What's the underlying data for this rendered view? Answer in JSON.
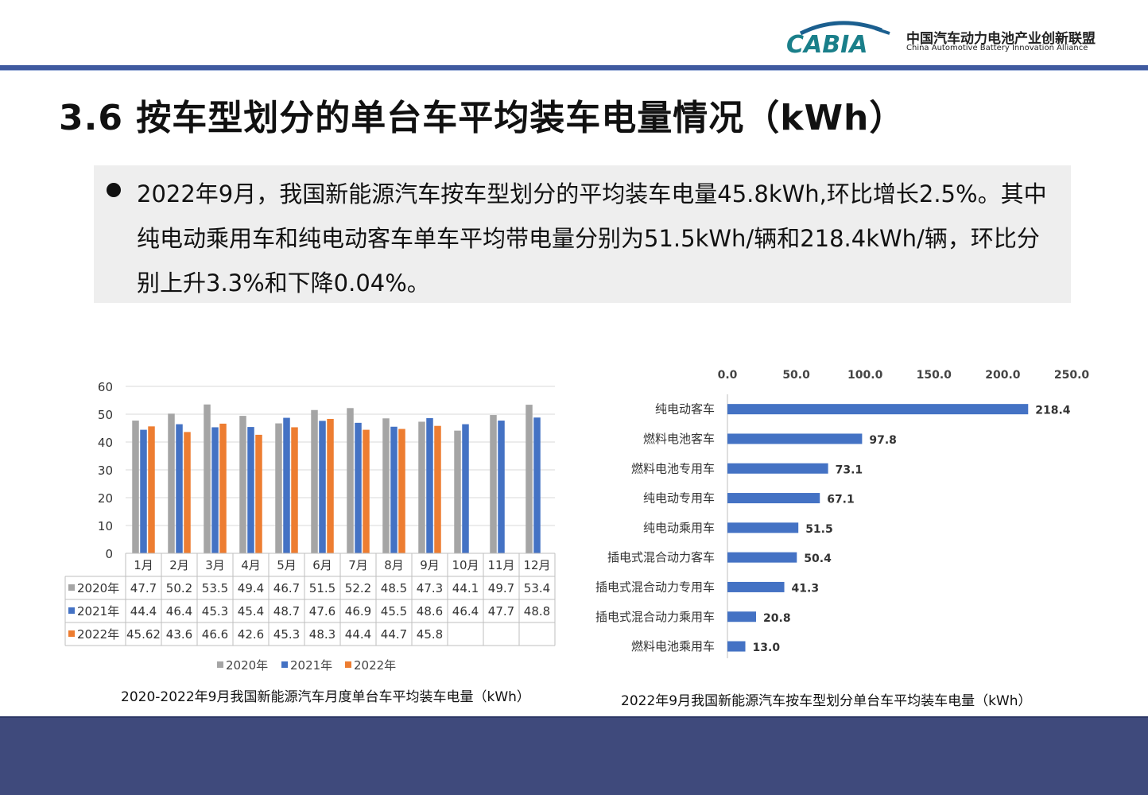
{
  "header": {
    "logo_mark": "CABIA",
    "logo_cn": "中国汽车动力电池产业创新联盟",
    "logo_en": "China Automotive Battery Innovation Alliance"
  },
  "title": "3.6 按车型划分的单台车平均装车电量情况（kWh）",
  "summary": "2022年9月，我国新能源汽车按车型划分的平均装车电量45.8kWh,环比增长2.5%。其中纯电动乘用车和纯电动客车单车平均带电量分别为51.5kWh/辆和218.4kWh/辆，环比分别上升3.3%和下降0.04%。",
  "colors": {
    "accent": "#3f5aa0",
    "s2020": "#a5a5a5",
    "s2021": "#4472c4",
    "s2022": "#ed7d31",
    "bar": "#4472c4",
    "footer": "#3f4a7c"
  },
  "chart_data": [
    {
      "type": "bar",
      "caption": "2020-2022年9月我国新能源汽车月度单台车平均装车电量（kWh）",
      "categories": [
        "1月",
        "2月",
        "3月",
        "4月",
        "5月",
        "6月",
        "7月",
        "8月",
        "9月",
        "10月",
        "11月",
        "12月"
      ],
      "series": [
        {
          "name": "2020年",
          "values": [
            47.7,
            50.2,
            53.5,
            49.4,
            46.7,
            51.5,
            52.2,
            48.5,
            47.3,
            44.1,
            49.7,
            53.4
          ],
          "labels": [
            "47.7",
            "50.2",
            "53.5",
            "49.4",
            "46.7",
            "51.5",
            "52.2",
            "48.5",
            "47.3",
            "44.1",
            "49.7",
            "53.4"
          ]
        },
        {
          "name": "2021年",
          "values": [
            44.4,
            46.4,
            45.3,
            45.4,
            48.7,
            47.6,
            46.9,
            45.5,
            48.6,
            46.4,
            47.7,
            48.8
          ],
          "labels": [
            "44.4",
            "46.4",
            "45.3",
            "45.4",
            "48.7",
            "47.6",
            "46.9",
            "45.5",
            "48.6",
            "46.4",
            "47.7",
            "48.8"
          ]
        },
        {
          "name": "2022年",
          "values": [
            45.62,
            43.6,
            46.6,
            42.6,
            45.3,
            48.3,
            44.4,
            44.7,
            45.8,
            null,
            null,
            null
          ],
          "labels": [
            "45.62",
            "43.6",
            "46.6",
            "42.6",
            "45.3",
            "48.3",
            "44.4",
            "44.7",
            "45.8",
            "",
            "",
            ""
          ]
        }
      ],
      "yticks": [
        "0",
        "10",
        "20",
        "30",
        "40",
        "50",
        "60"
      ],
      "ylim": [
        0,
        60
      ],
      "grid": true,
      "data_table": true,
      "legend": "bottom"
    },
    {
      "type": "bar",
      "orientation": "horizontal",
      "caption": "2022年9月我国新能源汽车按车型划分单台车平均装车电量（kWh）",
      "categories": [
        "纯电动客车",
        "燃料电池客车",
        "燃料电池专用车",
        "纯电动专用车",
        "纯电动乘用车",
        "插电式混合动力客车",
        "插电式混合动力专用车",
        "插电式混合动力乘用车",
        "燃料电池乘用车"
      ],
      "values": [
        218.4,
        97.8,
        73.1,
        67.1,
        51.5,
        50.4,
        41.3,
        20.8,
        13.0
      ],
      "labels": [
        "218.4",
        "97.8",
        "73.1",
        "67.1",
        "51.5",
        "50.4",
        "41.3",
        "20.8",
        "13.0"
      ],
      "xticks": [
        "0.0",
        "50.0",
        "100.0",
        "150.0",
        "200.0",
        "250.0"
      ],
      "xlim": [
        0,
        250
      ],
      "axis_position": "top"
    }
  ]
}
